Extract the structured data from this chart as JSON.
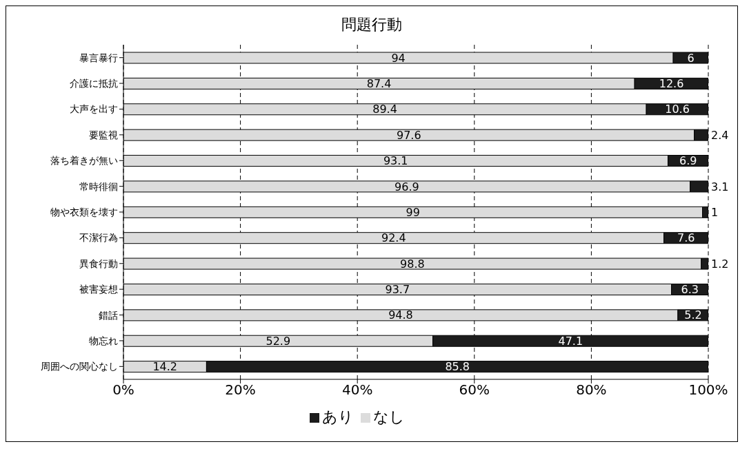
{
  "chart_data": {
    "type": "bar",
    "orientation": "horizontal",
    "stacked": true,
    "title": "問題行動",
    "categories": [
      "暴言暴行",
      "介護に抵抗",
      "大声を出す",
      "要監視",
      "落ち着きが無い",
      "常時徘徊",
      "物や衣類を壊す",
      "不潔行為",
      "異食行動",
      "被害妄想",
      "錯話",
      "物忘れ",
      "周囲への関心なし"
    ],
    "series": [
      {
        "name": "なし",
        "color": "#dcdcdc",
        "values": [
          94,
          87.4,
          89.4,
          97.6,
          93.1,
          96.9,
          99,
          92.4,
          98.8,
          93.7,
          94.8,
          52.9,
          14.2
        ]
      },
      {
        "name": "あり",
        "color": "#1c1c1c",
        "values": [
          6,
          12.6,
          10.6,
          2.4,
          6.9,
          3.1,
          1,
          7.6,
          1.2,
          6.3,
          5.2,
          47.1,
          85.8
        ]
      }
    ],
    "xlim": [
      0,
      100
    ],
    "xticks": [
      {
        "value": 0,
        "label": "0%"
      },
      {
        "value": 20,
        "label": "20%"
      },
      {
        "value": 40,
        "label": "40%"
      },
      {
        "value": 60,
        "label": "60%"
      },
      {
        "value": 80,
        "label": "80%"
      },
      {
        "value": 100,
        "label": "100%"
      }
    ],
    "grid": "x",
    "legend": "bottom",
    "data_labels": true
  }
}
